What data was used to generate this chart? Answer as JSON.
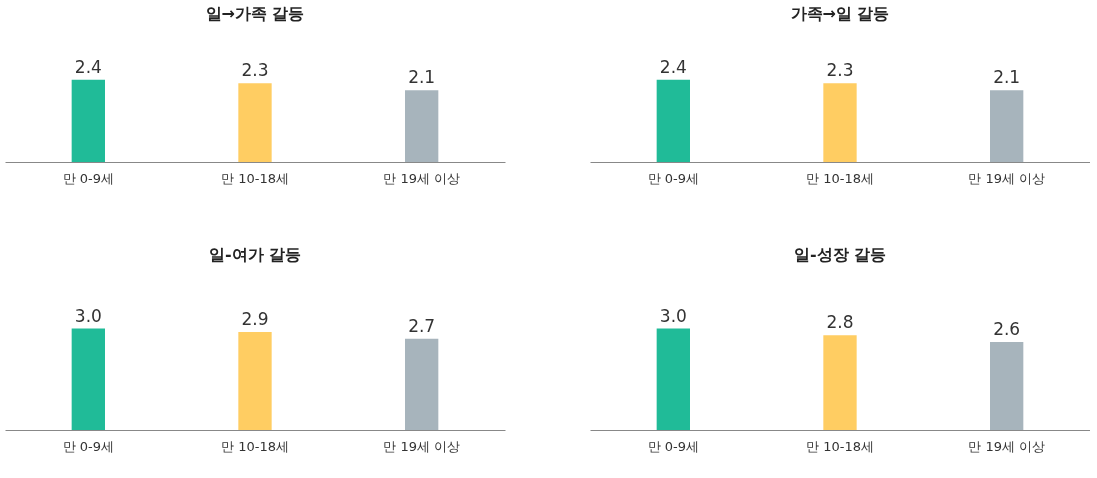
{
  "chart_data": [
    {
      "type": "bar",
      "title": "일→가족 갈등",
      "categories": [
        "만 0-9세",
        "만 10-18세",
        "만 19세 이상"
      ],
      "values": [
        2.4,
        2.3,
        2.1
      ],
      "colors": [
        "#20bb98",
        "#ffcd62",
        "#a7b4bc"
      ],
      "data_labels": true
    },
    {
      "type": "bar",
      "title": "가족→일 갈등",
      "categories": [
        "만 0-9세",
        "만 10-18세",
        "만 19세 이상"
      ],
      "values": [
        2.4,
        2.3,
        2.1
      ],
      "colors": [
        "#20bb98",
        "#ffcd62",
        "#a7b4bc"
      ],
      "data_labels": true
    },
    {
      "type": "bar",
      "title": "일-여가 갈등",
      "categories": [
        "만 0-9세",
        "만 10-18세",
        "만 19세 이상"
      ],
      "values": [
        3.0,
        2.9,
        2.7
      ],
      "value_labels": [
        "3.0",
        "2.9",
        "2.7"
      ],
      "colors": [
        "#20bb98",
        "#ffcd62",
        "#a7b4bc"
      ]
    },
    {
      "type": "bar",
      "title": "일-성장 갈등",
      "categories": [
        "만 0-9세",
        "만 10-18세",
        "만 19세 이상"
      ],
      "values": [
        3.0,
        2.8,
        2.6
      ],
      "value_labels": [
        "3.0",
        "2.8",
        "2.6"
      ],
      "colors": [
        "#20bb98",
        "#ffcd62",
        "#a7b4bc"
      ]
    }
  ]
}
